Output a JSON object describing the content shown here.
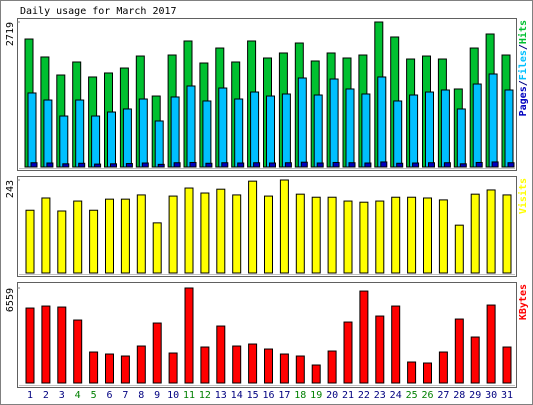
{
  "title": "Daily usage for March 2017",
  "legend_separator": "/",
  "chart_data": [
    {
      "type": "bar",
      "ylim": [
        0,
        2719
      ],
      "yticks": [
        2719
      ],
      "series": [
        {
          "name": "Pages",
          "color": "#0000c0",
          "values": [
            80,
            75,
            60,
            70,
            55,
            60,
            65,
            75,
            50,
            80,
            85,
            70,
            80,
            75,
            80,
            75,
            80,
            90,
            75,
            85,
            80,
            75,
            95,
            70,
            75,
            80,
            80,
            60,
            85,
            95,
            80
          ]
        },
        {
          "name": "Files",
          "color": "#00c0ff",
          "values": [
            1388,
            1256,
            956,
            1256,
            956,
            1031,
            1088,
            1275,
            863,
            1313,
            1519,
            1238,
            1481,
            1275,
            1406,
            1331,
            1369,
            1669,
            1350,
            1650,
            1463,
            1369,
            1688,
            1238,
            1350,
            1406,
            1444,
            1088,
            1556,
            1744,
            1444
          ]
        },
        {
          "name": "Hits",
          "color": "#00c030",
          "values": [
            2400,
            2063,
            1725,
            1969,
            1688,
            1763,
            1856,
            2081,
            1331,
            2100,
            2363,
            1950,
            2231,
            1969,
            2363,
            2044,
            2138,
            2325,
            1988,
            2138,
            2044,
            2100,
            2719,
            2438,
            2025,
            2081,
            2025,
            1463,
            2231,
            2494,
            2100
          ]
        }
      ]
    },
    {
      "type": "bar",
      "ylim": [
        0,
        243
      ],
      "yticks": [
        243
      ],
      "series": [
        {
          "name": "Visits",
          "color": "#ffff00",
          "values": [
            164,
            196,
            162,
            188,
            164,
            193,
            193,
            204,
            131,
            201,
            222,
            209,
            219,
            204,
            240,
            201,
            243,
            206,
            198,
            198,
            188,
            185,
            188,
            198,
            198,
            196,
            191,
            125,
            206,
            217,
            204
          ]
        }
      ]
    },
    {
      "type": "bar",
      "ylim": [
        0,
        6559
      ],
      "yticks": [
        6559
      ],
      "categories": [
        "1",
        "2",
        "3",
        "4",
        "5",
        "6",
        "7",
        "8",
        "9",
        "10",
        "11",
        "12",
        "13",
        "14",
        "15",
        "16",
        "17",
        "18",
        "19",
        "20",
        "21",
        "22",
        "23",
        "24",
        "25",
        "26",
        "27",
        "28",
        "29",
        "30",
        "31"
      ],
      "category_colors": [
        "#000080",
        "#000080",
        "#000080",
        "#008000",
        "#008000",
        "#000080",
        "#000080",
        "#000080",
        "#000080",
        "#000080",
        "#008000",
        "#008000",
        "#000080",
        "#000080",
        "#000080",
        "#000080",
        "#000080",
        "#008000",
        "#008000",
        "#000080",
        "#000080",
        "#000080",
        "#000080",
        "#000080",
        "#008000",
        "#008000",
        "#000080",
        "#000080",
        "#000080",
        "#000080",
        "#000080"
      ],
      "series": [
        {
          "name": "KBytes",
          "color": "#ff0000",
          "values": [
            5175,
            5313,
            5244,
            4347,
            2139,
            2001,
            1863,
            2553,
            4140,
            2070,
            6559,
            2484,
            3933,
            2553,
            2691,
            2346,
            2001,
            1863,
            1242,
            2208,
            4209,
            6348,
            4623,
            5313,
            1449,
            1380,
            2139,
            4416,
            3174,
            5382,
            2484
          ]
        }
      ]
    }
  ]
}
